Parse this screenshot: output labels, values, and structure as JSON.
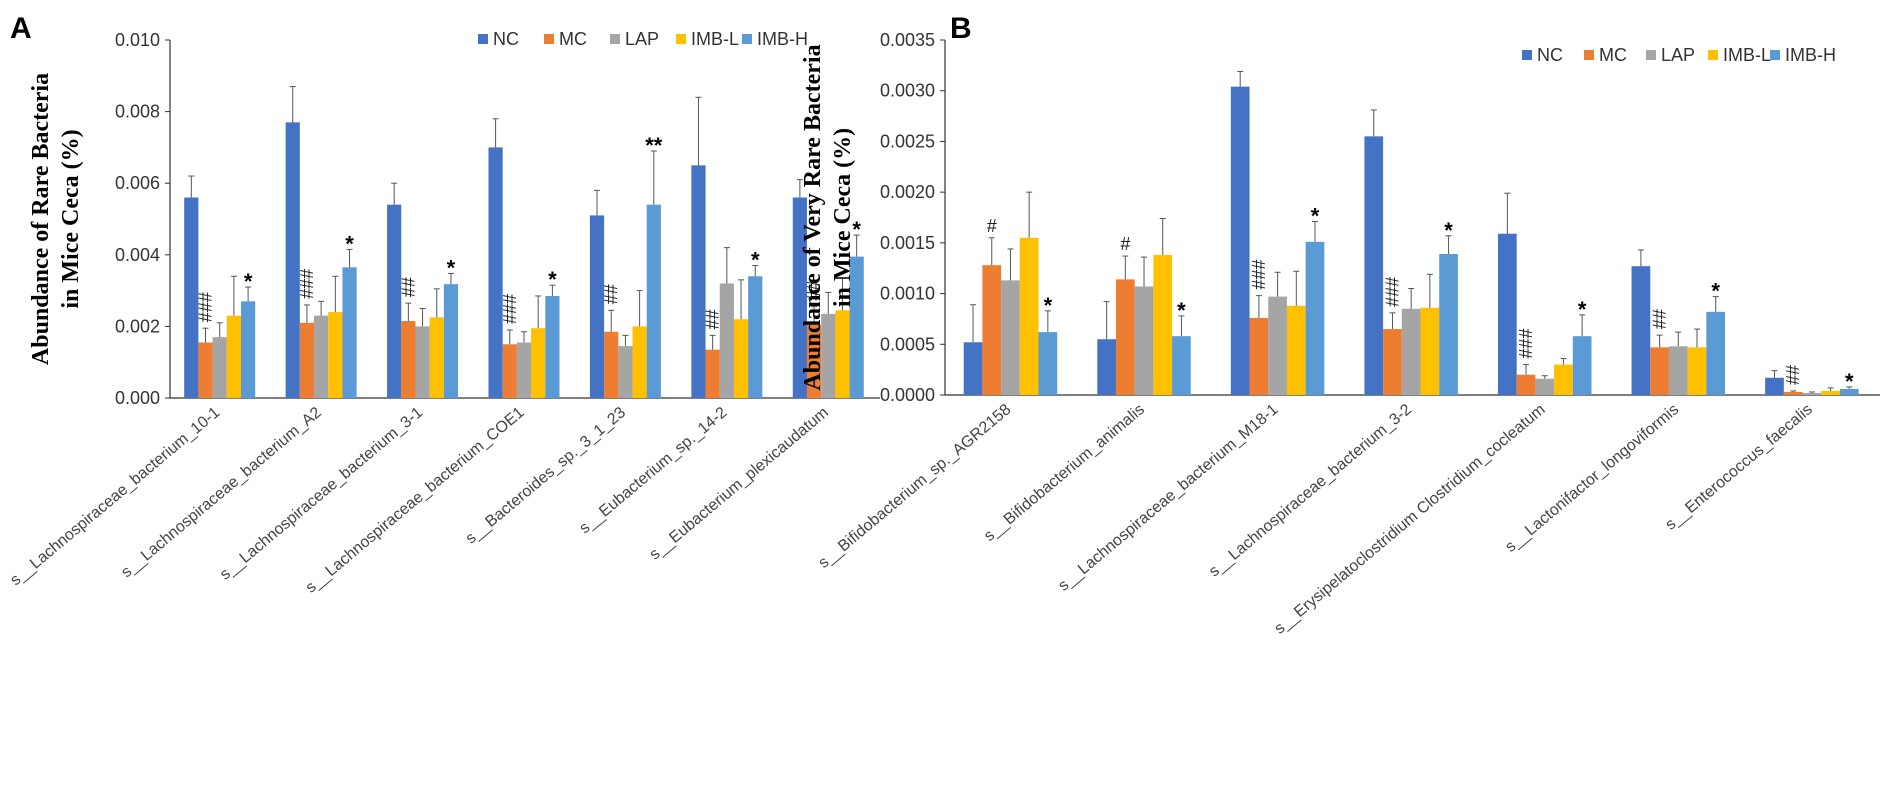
{
  "chart_data": [
    {
      "panel": "A",
      "type": "bar",
      "ylabel_line1": "Abundance of Rare Bacteria",
      "ylabel_line2": "in Mice Ceca (%)",
      "ylim": [
        0,
        0.01
      ],
      "yticks": [
        "0.000",
        "0.002",
        "0.004",
        "0.006",
        "0.008",
        "0.010"
      ],
      "legend_position": "top-right",
      "categories": [
        "s__Lachnospiraceae_bacterium_10-1",
        "s__Lachnospiraceae_bacterium_A2",
        "s__Lachnospiraceae_bacterium_3-1",
        "s__Lachnospiraceae_bacterium_COE1",
        "s__Bacteroides_sp._3_1_23",
        "s__Eubacterium_sp._14-2",
        "s__Eubacterium_plexicaudatum"
      ],
      "series": [
        {
          "name": "NC",
          "color": "#4472C4",
          "values": [
            0.0056,
            0.0077,
            0.0054,
            0.007,
            0.0051,
            0.0065,
            0.0056
          ],
          "errors": [
            0.0006,
            0.001,
            0.0006,
            0.0008,
            0.0007,
            0.0019,
            0.0005
          ]
        },
        {
          "name": "MC",
          "color": "#ED7D31",
          "values": [
            0.00155,
            0.0021,
            0.00215,
            0.0015,
            0.00185,
            0.00135,
            0.00205
          ],
          "errors": [
            0.0004,
            0.0005,
            0.0005,
            0.0004,
            0.0006,
            0.0004,
            0.0005
          ]
        },
        {
          "name": "LAP",
          "color": "#A5A5A5",
          "values": [
            0.0017,
            0.0023,
            0.002,
            0.00155,
            0.00145,
            0.0032,
            0.00235
          ],
          "errors": [
            0.0004,
            0.0004,
            0.0005,
            0.0003,
            0.0003,
            0.001,
            0.0006
          ]
        },
        {
          "name": "IMB-L",
          "color": "#FFC000",
          "values": [
            0.0023,
            0.0024,
            0.00225,
            0.00195,
            0.002,
            0.0022,
            0.00245
          ],
          "errors": [
            0.0011,
            0.001,
            0.0008,
            0.0009,
            0.001,
            0.0011,
            0.0009
          ]
        },
        {
          "name": "IMB-H",
          "color": "#5B9BD5",
          "values": [
            0.0027,
            0.00365,
            0.00318,
            0.00285,
            0.0054,
            0.0034,
            0.00395
          ],
          "errors": [
            0.0004,
            0.0005,
            0.0003,
            0.0003,
            0.0015,
            0.0003,
            0.0006
          ]
        }
      ],
      "annotations": [
        {
          "category": 0,
          "series": "MC",
          "text": "###"
        },
        {
          "category": 0,
          "series": "IMB-H",
          "text": "*"
        },
        {
          "category": 1,
          "series": "MC",
          "text": "###"
        },
        {
          "category": 1,
          "series": "IMB-H",
          "text": "*"
        },
        {
          "category": 2,
          "series": "MC",
          "text": "##"
        },
        {
          "category": 2,
          "series": "IMB-H",
          "text": "*"
        },
        {
          "category": 3,
          "series": "MC",
          "text": "###"
        },
        {
          "category": 3,
          "series": "IMB-H",
          "text": "*"
        },
        {
          "category": 4,
          "series": "MC",
          "text": "##"
        },
        {
          "category": 4,
          "series": "IMB-H",
          "text": "**"
        },
        {
          "category": 5,
          "series": "MC",
          "text": "##"
        },
        {
          "category": 5,
          "series": "IMB-H",
          "text": "*"
        },
        {
          "category": 6,
          "series": "MC",
          "text": "##"
        },
        {
          "category": 6,
          "series": "IMB-H",
          "text": "*"
        }
      ]
    },
    {
      "panel": "B",
      "type": "bar",
      "ylabel_line1": "Abundance of Very Rare Bacteria",
      "ylabel_line2": "in Mice Ceca (%)",
      "ylim": [
        0,
        0.0035
      ],
      "yticks": [
        "0.0000",
        "0.0005",
        "0.0010",
        "0.0015",
        "0.0020",
        "0.0025",
        "0.0030",
        "0.0035"
      ],
      "legend_position": "top-right",
      "categories": [
        "s__Bifidobacterium_sp._AGR2158",
        "s__Bifidobacterium_animalis",
        "s__Lachnospiraceae_bacterium_M18-1",
        "s__Lachnospiraceae_bacterium_3-2",
        "s__Erysipelatoclostridium Clostridium_cocleatum",
        "s__Lactonifactor_longoviformis",
        "s__Enterococcus_faecalis"
      ],
      "series": [
        {
          "name": "NC",
          "color": "#4472C4",
          "values": [
            0.00052,
            0.00055,
            0.00304,
            0.00255,
            0.00159,
            0.00127,
            0.00017
          ],
          "errors": [
            0.00037,
            0.00037,
            0.00015,
            0.00026,
            0.0004,
            0.00016,
            7e-05
          ]
        },
        {
          "name": "MC",
          "color": "#ED7D31",
          "values": [
            0.00128,
            0.00114,
            0.00076,
            0.00065,
            0.0002,
            0.00047,
            3e-05
          ],
          "errors": [
            0.00027,
            0.00023,
            0.00022,
            0.00016,
            0.0001,
            0.00012,
            1e-05
          ]
        },
        {
          "name": "LAP",
          "color": "#A5A5A5",
          "values": [
            0.00113,
            0.00107,
            0.00097,
            0.00085,
            0.00016,
            0.00048,
            2e-05
          ],
          "errors": [
            0.00031,
            0.00029,
            0.00024,
            0.0002,
            3e-05,
            0.00014,
            1e-05
          ]
        },
        {
          "name": "IMB-L",
          "color": "#FFC000",
          "values": [
            0.00155,
            0.00138,
            0.00088,
            0.00086,
            0.0003,
            0.00047,
            4e-05
          ],
          "errors": [
            0.00045,
            0.00036,
            0.00034,
            0.00033,
            6e-05,
            0.00018,
            3e-05
          ]
        },
        {
          "name": "IMB-H",
          "color": "#5B9BD5",
          "values": [
            0.00062,
            0.00058,
            0.00151,
            0.00139,
            0.00058,
            0.00082,
            6e-05
          ],
          "errors": [
            0.00021,
            0.0002,
            0.0002,
            0.00018,
            0.00021,
            0.00015,
            2e-05
          ]
        }
      ],
      "annotations": [
        {
          "category": 0,
          "series": "MC",
          "text": "#"
        },
        {
          "category": 0,
          "series": "IMB-H",
          "text": "*"
        },
        {
          "category": 1,
          "series": "MC",
          "text": "#"
        },
        {
          "category": 1,
          "series": "IMB-H",
          "text": "*"
        },
        {
          "category": 2,
          "series": "MC",
          "text": "###"
        },
        {
          "category": 2,
          "series": "IMB-H",
          "text": "*"
        },
        {
          "category": 3,
          "series": "MC",
          "text": "###"
        },
        {
          "category": 3,
          "series": "IMB-H",
          "text": "*"
        },
        {
          "category": 4,
          "series": "MC",
          "text": "###"
        },
        {
          "category": 4,
          "series": "IMB-H",
          "text": "*"
        },
        {
          "category": 5,
          "series": "MC",
          "text": "##"
        },
        {
          "category": 5,
          "series": "IMB-H",
          "text": "*"
        },
        {
          "category": 6,
          "series": "MC",
          "text": "##"
        },
        {
          "category": 6,
          "series": "IMB-H",
          "text": "*"
        }
      ]
    }
  ]
}
